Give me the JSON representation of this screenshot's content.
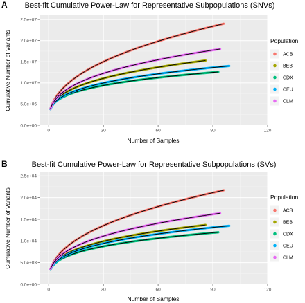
{
  "colors": {
    "panel_bg": "#ebebeb",
    "grid": "#ffffff",
    "fit_line": "#000000"
  },
  "chart_data": [
    {
      "panel_label": "A",
      "type": "line",
      "title": "Best-fit Cumulative Power-Law for Representative Subpopulations (SNVs)",
      "xlabel": "Number of Samples",
      "ylabel": "Cumulative Number of Variants",
      "xlim": [
        -5,
        120
      ],
      "ylim": [
        0,
        26000000
      ],
      "x_ticks": [
        0,
        30,
        60,
        90,
        120
      ],
      "x_tick_labels": [
        "0",
        "30",
        "60",
        "90",
        "120"
      ],
      "y_ticks": [
        0,
        5000000,
        10000000,
        15000000,
        20000000,
        25000000
      ],
      "y_tick_labels": [
        "0.0e+00",
        "5.0e+06",
        "1.0e+07",
        "1.5e+07",
        "2.0e+07",
        "2.5e+07"
      ],
      "legend": {
        "title": "Population",
        "position": "right"
      },
      "grid": true,
      "series": [
        {
          "name": "ACB",
          "color": "#f8766d",
          "n_max": 96,
          "y_at_1": 3800000,
          "y_at_max": 24000000
        },
        {
          "name": "BEB",
          "color": "#a3a500",
          "n_max": 86,
          "y_at_1": 3900000,
          "y_at_max": 15300000
        },
        {
          "name": "CDX",
          "color": "#00bf7d",
          "n_max": 93,
          "y_at_1": 3900000,
          "y_at_max": 12600000
        },
        {
          "name": "CEU",
          "color": "#00b0f6",
          "n_max": 99,
          "y_at_1": 3800000,
          "y_at_max": 14000000
        },
        {
          "name": "CLM",
          "color": "#e76bf3",
          "n_max": 94,
          "y_at_1": 3900000,
          "y_at_max": 18000000
        }
      ]
    },
    {
      "panel_label": "B",
      "type": "line",
      "title": "Best-fit Cumulative Power-Law for Representative Subpopulations (SVs)",
      "xlabel": "Number of Samples",
      "ylabel": "Cumulative Number of Variants",
      "xlim": [
        -5,
        120
      ],
      "ylim": [
        0,
        26000
      ],
      "x_ticks": [
        0,
        30,
        60,
        90,
        120
      ],
      "x_tick_labels": [
        "0",
        "30",
        "60",
        "90",
        "120"
      ],
      "y_ticks": [
        0,
        5000,
        10000,
        15000,
        20000,
        25000
      ],
      "y_tick_labels": [
        "0.0e+00",
        "5.0e+03",
        "1.0e+04",
        "1.5e+04",
        "2.0e+04",
        "2.5e+04"
      ],
      "legend": {
        "title": "Population",
        "position": "right"
      },
      "grid": true,
      "series": [
        {
          "name": "ACB",
          "color": "#f8766d",
          "n_max": 96,
          "y_at_1": 3400,
          "y_at_max": 21700
        },
        {
          "name": "BEB",
          "color": "#a3a500",
          "n_max": 86,
          "y_at_1": 3500,
          "y_at_max": 13700
        },
        {
          "name": "CDX",
          "color": "#00bf7d",
          "n_max": 93,
          "y_at_1": 3400,
          "y_at_max": 12000
        },
        {
          "name": "CEU",
          "color": "#00b0f6",
          "n_max": 99,
          "y_at_1": 3400,
          "y_at_max": 13500
        },
        {
          "name": "CLM",
          "color": "#e76bf3",
          "n_max": 94,
          "y_at_1": 3500,
          "y_at_max": 16400
        }
      ]
    }
  ]
}
